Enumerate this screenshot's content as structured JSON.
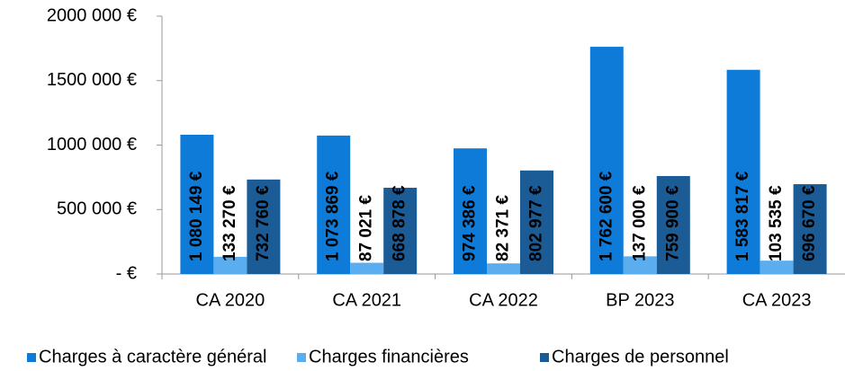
{
  "chart_data": {
    "type": "bar",
    "categories": [
      "CA 2020",
      "CA 2021",
      "CA 2022",
      "BP 2023",
      "CA 2023"
    ],
    "series": [
      {
        "name": "Charges à caractère général",
        "color": "#0f7bd8",
        "values": [
          1080149,
          1073869,
          974386,
          1762600,
          1583817
        ],
        "value_labels": [
          "1 080 149 €",
          "1 073 869 €",
          "974 386 €",
          "1 762 600 €",
          "1 583 817 €"
        ]
      },
      {
        "name": "Charges financières",
        "color": "#5aaef0",
        "values": [
          133270,
          87021,
          82371,
          137000,
          103535
        ],
        "value_labels": [
          "133 270 €",
          "87 021 €",
          "82 371 €",
          "137 000 €",
          "103 535 €"
        ]
      },
      {
        "name": "Charges de personnel",
        "color": "#1b5b96",
        "values": [
          732760,
          668878,
          802977,
          759900,
          696670
        ],
        "value_labels": [
          "732 760 €",
          "668 878 €",
          "802 977 €",
          "759 900 €",
          "696 670 €"
        ]
      }
    ],
    "ylim": [
      0,
      2000000
    ],
    "yticks": [
      {
        "value": 0,
        "label": "- €"
      },
      {
        "value": 500000,
        "label": "500 000 €"
      },
      {
        "value": 1000000,
        "label": "1000 000 €"
      },
      {
        "value": 1500000,
        "label": "1500 000 €"
      },
      {
        "value": 2000000,
        "label": "2000 000 €"
      }
    ],
    "legend": "bottom"
  }
}
